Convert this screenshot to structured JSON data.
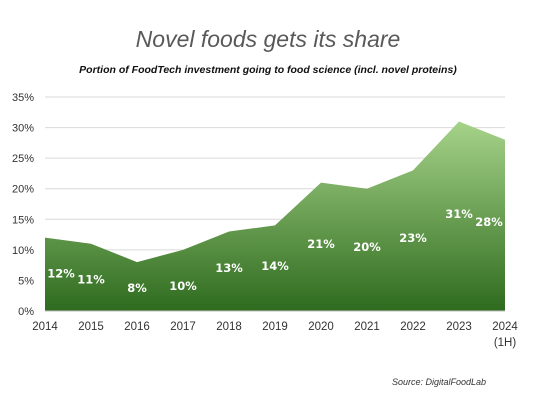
{
  "chart_data": {
    "type": "area",
    "title": "Novel foods gets its share",
    "subtitle": "Portion of FoodTech investment going to food science (incl. novel proteins)",
    "x": [
      "2014",
      "2015",
      "2016",
      "2017",
      "2018",
      "2019",
      "2020",
      "2021",
      "2022",
      "2023",
      "2024\n(1H)"
    ],
    "values": [
      12,
      11,
      8,
      10,
      13,
      14,
      21,
      20,
      23,
      31,
      28
    ],
    "data_labels": [
      "12%",
      "11%",
      "8%",
      "10%",
      "13%",
      "14%",
      "21%",
      "20%",
      "23%",
      "31%",
      "28%"
    ],
    "yticks": [
      "0%",
      "5%",
      "10%",
      "15%",
      "20%",
      "25%",
      "30%",
      "35%"
    ],
    "ylim": [
      0,
      35
    ],
    "grid": true,
    "colors": {
      "fill_top": "#a6d389",
      "fill_bottom": "#2e6b1e",
      "label": "#ffffff",
      "grid": "#d9d9d9"
    }
  },
  "source": "Source: DigitalFoodLab"
}
